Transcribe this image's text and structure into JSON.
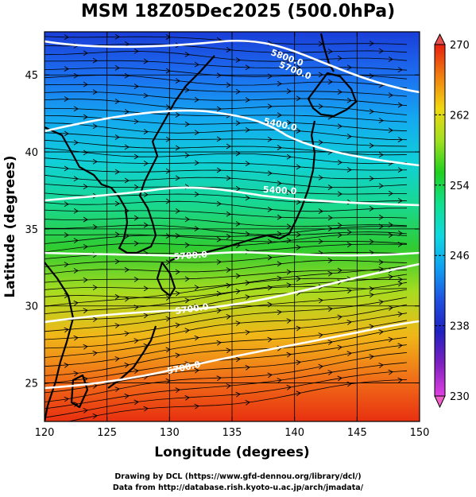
{
  "title": "MSM 18Z05Dec2025 (500.0hPa)",
  "x_axis": {
    "label": "Longitude (degrees)",
    "range": [
      120,
      150
    ],
    "ticks": [
      "120",
      "125",
      "130",
      "135",
      "140",
      "145",
      "150"
    ]
  },
  "y_axis": {
    "label": "Latitude  (degrees)",
    "range": [
      22.5,
      47.8
    ],
    "ticks": [
      "25",
      "30",
      "35",
      "40",
      "45"
    ]
  },
  "colorbar": {
    "range": [
      230,
      270
    ],
    "ticks": [
      "270",
      "262",
      "254",
      "246",
      "238",
      "230"
    ],
    "colors": [
      "#e040e0",
      "#8020c0",
      "#2020c0",
      "#2050e0",
      "#10a0f0",
      "#10d8e0",
      "#10e090",
      "#20d020",
      "#a0e020",
      "#f0d810",
      "#f08010",
      "#e82010"
    ]
  },
  "map": {
    "field": "temperature",
    "grid": true,
    "contour_labels": [
      "5700.0",
      "5400.0",
      "5400.0",
      "5700.0",
      "5700.0",
      "5700.0",
      "5800.0"
    ],
    "contour_color": "#ffffff",
    "coastline_color": "#000000",
    "streamline_color": "#000000"
  },
  "credits": {
    "line1": "Drawing by DCL (https://www.gfd-dennou.org/library/dcl/)",
    "line2": "Data from http://database.rish.kyoto-u.ac.jp/arch/jmadata/"
  }
}
